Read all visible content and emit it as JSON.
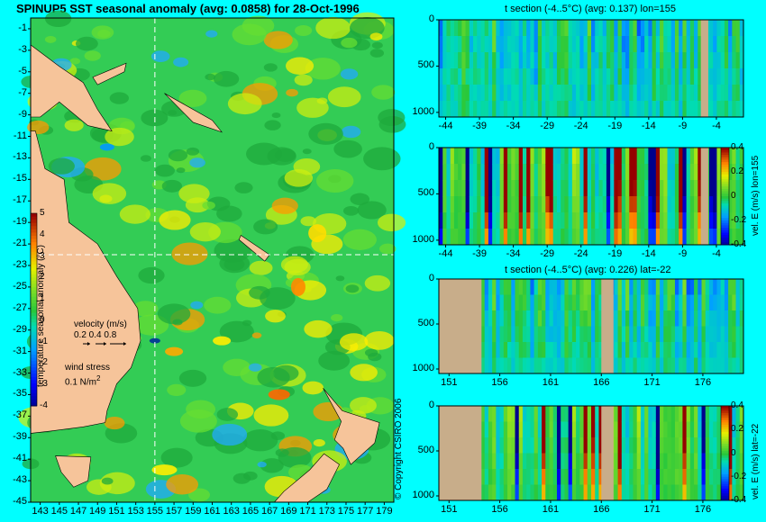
{
  "colors": {
    "background": "#00ffff",
    "land": "#f6c49a",
    "land_section": "#c8ad8a",
    "ocean_base": "#33cc55",
    "ocean_alt": "#1faa3c",
    "grid_dash": "#ffffff"
  },
  "chart_data": [
    {
      "type": "heatmap",
      "title": "SPINUP5 SST seasonal anomaly (avg: 0.0858) for 28-Oct-1996",
      "x_ticks": [
        "143",
        "145",
        "147",
        "149",
        "151",
        "153",
        "155",
        "157",
        "159",
        "161",
        "163",
        "165",
        "167",
        "169",
        "171",
        "173",
        "175",
        "177",
        "179"
      ],
      "y_ticks": [
        "-1",
        "-3",
        "-5",
        "-7",
        "-9",
        "-11",
        "-13",
        "-15",
        "-17",
        "-19",
        "-21",
        "-23",
        "-25",
        "-27",
        "-29",
        "-31",
        "-33",
        "-35",
        "-37",
        "-39",
        "-41",
        "-43",
        "-45"
      ],
      "xlim": [
        142,
        180
      ],
      "ylim": [
        -45,
        0
      ],
      "colorbar": {
        "label": "temperature seasonal anomaly (°C)",
        "ticks": [
          "5",
          "4",
          "3",
          "2",
          "1",
          "0",
          "-1",
          "-2",
          "-3",
          "-4"
        ],
        "range": [
          -4,
          5
        ]
      },
      "velocity_legend": {
        "title": "velocity (m/s)",
        "values": "0.2 0.4 0.8"
      },
      "wind_legend": {
        "title": "wind stress",
        "value": "0.1 N/m",
        "exp": "2"
      },
      "copyright": "© Copyright CSIRO 2006",
      "crosshair": {
        "lon": 155,
        "lat": -22
      }
    },
    {
      "type": "heatmap",
      "title": "t section (-4..5°C) (avg: 0.137) lon=155",
      "x_ticks": [
        "-44",
        "-39",
        "-34",
        "-29",
        "-24",
        "-19",
        "-14",
        "-9",
        "-4"
      ],
      "y_ticks": [
        "0",
        "500",
        "1000"
      ],
      "xlim": [
        -45,
        0
      ],
      "ylim": [
        1050,
        0
      ],
      "colormap_range": [
        -4,
        5
      ]
    },
    {
      "type": "heatmap",
      "title": "",
      "x_ticks": [
        "-44",
        "-39",
        "-34",
        "-29",
        "-24",
        "-19",
        "-14",
        "-9",
        "-4"
      ],
      "y_ticks": [
        "0",
        "500",
        "1000"
      ],
      "xlim": [
        -45,
        0
      ],
      "ylim": [
        1050,
        0
      ],
      "colorbar": {
        "label": "vel. E (m/s) lon=155",
        "ticks": [
          "0.4",
          "0.2",
          "0",
          "-0.2",
          "-0.4"
        ],
        "range": [
          -0.4,
          0.4
        ]
      }
    },
    {
      "type": "heatmap",
      "title": "t section (-4..5°C) (avg: 0.226) lat=-22",
      "x_ticks": [
        "151",
        "156",
        "161",
        "166",
        "171",
        "176"
      ],
      "y_ticks": [
        "0",
        "500",
        "1000"
      ],
      "xlim": [
        150,
        180
      ],
      "ylim": [
        1050,
        0
      ],
      "colormap_range": [
        -4,
        5
      ]
    },
    {
      "type": "heatmap",
      "title": "",
      "x_ticks": [
        "151",
        "156",
        "161",
        "166",
        "171",
        "176"
      ],
      "y_ticks": [
        "0",
        "500",
        "1000"
      ],
      "xlim": [
        150,
        180
      ],
      "ylim": [
        1050,
        0
      ],
      "colorbar": {
        "label": "vel. E (m/s) lat=-22",
        "ticks": [
          "0.4",
          "0.2",
          "0",
          "-0.2",
          "-0.4"
        ],
        "range": [
          -0.4,
          0.4
        ]
      }
    }
  ]
}
